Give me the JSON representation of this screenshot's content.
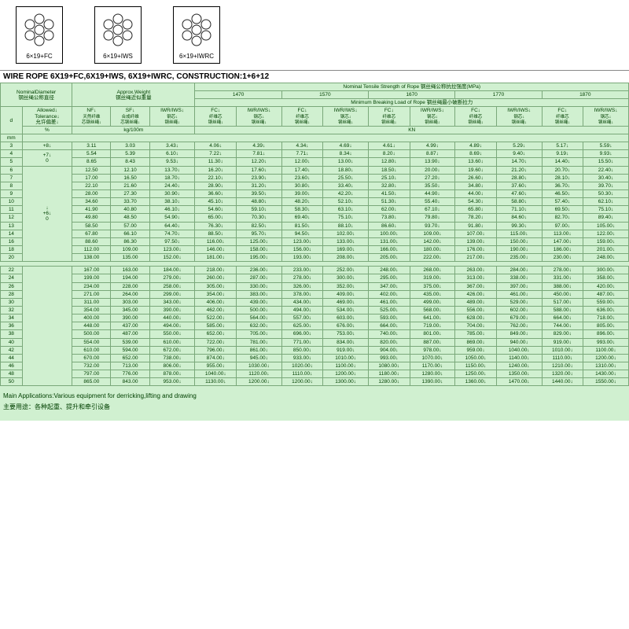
{
  "rope_cards": [
    {
      "label": "6×19+FC"
    },
    {
      "label": "6×19+IWS"
    },
    {
      "label": "6×19+IWRC"
    }
  ],
  "title": "WIRE ROPE  6X19+FC,6X19+IWS, 6X19+IWRC, CONSTRUCTION:1+6+12",
  "hdr": {
    "nominal_diameter": "NominalDiameter",
    "nominal_diameter_cn": "钢丝绳公称直径",
    "approx_weight": "Approx.Weight",
    "approx_weight_cn": "钢丝绳近似重量",
    "tensile": "Nominal Tensile Strength of Rope 钢丝绳公称抗拉强度(MPa)",
    "ts_cols": [
      "1470",
      "1570",
      "1670",
      "1770",
      "1870"
    ],
    "min_break": "Minimum Breaking Load of Rope 钢丝绳最小破断拉力",
    "d": "d",
    "allowed": "Allowed↓",
    "tolerance": "Tolerance↓",
    "tolerance_cn": "允许偏差↓",
    "nf": "NF↓",
    "nf_cn1": "天然纤维",
    "nf_cn2": "芯钢丝绳↓",
    "sf": "SF↓",
    "sf_cn1": "合成纤维",
    "sf_cn2": "芯钢丝绳↓",
    "iwr": "IWR/IWS↓",
    "iwr_cn1": "钢芯↓",
    "iwr_cn2": "钢丝绳↓",
    "fc": "FC↓",
    "fc_cn1": "纤维芯",
    "fc_cn2": "钢丝绳↓",
    "unit_mm": "mm",
    "unit_pct": "%",
    "unit_kg": "kg/100m",
    "unit_kn": "KN"
  },
  "tol_block1": "+8↓",
  "tol_block2a": "+7↓",
  "tol_block2b": "0",
  "tol_block3a": "↓",
  "tol_block3b": "+6↓",
  "tol_block3c": "0",
  "rows_a": [
    {
      "d": "3",
      "nf": "3.11",
      "sf": "3.03",
      "iwr": "3.43↓",
      "v": [
        "4.06",
        "4.39",
        "4.34",
        "4.69",
        "4.61",
        "4.99",
        "4.89",
        "5.29",
        "5.17",
        "5.59"
      ]
    },
    {
      "d": "4",
      "nf": "5.54",
      "sf": "5.39",
      "iwr": "6.10↓",
      "v": [
        "7.22",
        "7.81",
        "7.71",
        "8.34",
        "8.20",
        "8.87",
        "8.69",
        "9.40",
        "9.19",
        "9.93"
      ]
    },
    {
      "d": "5",
      "nf": "8.65",
      "sf": "8.43",
      "iwr": "9.53↓",
      "v": [
        "11.30",
        "12.20",
        "12.00",
        "13.00",
        "12.80",
        "13.90",
        "13.60",
        "14.70",
        "14.40",
        "15.50"
      ]
    }
  ],
  "rows_b": [
    {
      "d": "6",
      "nf": "12.50",
      "sf": "12.10",
      "iwr": "13.70↓",
      "v": [
        "16.20",
        "17.60",
        "17.40",
        "18.80",
        "18.50",
        "20.00",
        "19.60",
        "21.20",
        "20.70",
        "22.40"
      ]
    },
    {
      "d": "7",
      "nf": "17.00",
      "sf": "16.50",
      "iwr": "18.70↓",
      "v": [
        "22.10",
        "23.90",
        "23.60",
        "25.50",
        "25.10",
        "27.20",
        "26.60",
        "28.80",
        "28.10",
        "30.40"
      ]
    },
    {
      "d": "8",
      "nf": "22.10",
      "sf": "21.60",
      "iwr": "24.40↓",
      "v": [
        "28.90",
        "31.20",
        "30.80",
        "33.40",
        "32.80",
        "35.50",
        "34.80",
        "37.60",
        "36.70",
        "39.70"
      ]
    },
    {
      "d": "9",
      "nf": "28.00",
      "sf": "27.30",
      "iwr": "30.90↓",
      "v": [
        "36.60",
        "39.50",
        "39.00",
        "42.20",
        "41.50",
        "44.90",
        "44.00",
        "47.60",
        "46.50",
        "50.30"
      ]
    },
    {
      "d": "10",
      "nf": "34.60",
      "sf": "33.70",
      "iwr": "38.10↓",
      "v": [
        "45.10",
        "48.80",
        "48.20",
        "52.10",
        "51.30",
        "55.40",
        "54.30",
        "58.80",
        "57.40",
        "62.10"
      ]
    },
    {
      "d": "11",
      "nf": "41.90",
      "sf": "40.80",
      "iwr": "46.10↓",
      "v": [
        "54.60",
        "59.10",
        "58.30",
        "63.10",
        "62.00",
        "67.10",
        "65.80",
        "71.10",
        "69.50",
        "75.10"
      ]
    },
    {
      "d": "12",
      "nf": "49.80",
      "sf": "48.50",
      "iwr": "54.90↓",
      "v": [
        "65.00",
        "70.30",
        "69.40",
        "75.10",
        "73.80",
        "79.80",
        "78.20",
        "84.60",
        "82.70",
        "89.40"
      ]
    },
    {
      "d": "13",
      "nf": "58.50",
      "sf": "57.00",
      "iwr": "64.40↓",
      "v": [
        "76.30",
        "82.50",
        "81.50",
        "88.10",
        "86.60",
        "93.70",
        "91.80",
        "99.30",
        "97.00",
        "105.00"
      ]
    },
    {
      "d": "14",
      "nf": "67.80",
      "sf": "66.10",
      "iwr": "74.70↓",
      "v": [
        "88.50",
        "95.70",
        "94.50",
        "102.00",
        "100.00",
        "109.00",
        "107.00",
        "115.00",
        "113.00",
        "122.00"
      ]
    },
    {
      "d": "16",
      "nf": "88.60",
      "sf": "86.30",
      "iwr": "97.50↓",
      "v": [
        "116.00",
        "125.00",
        "123.00",
        "133.00",
        "131.00",
        "142.00",
        "139.00",
        "150.00",
        "147.00",
        "159.00"
      ]
    },
    {
      "d": "18",
      "nf": "112.00",
      "sf": "109.00",
      "iwr": "123.00↓",
      "v": [
        "146.00",
        "158.00",
        "156.00",
        "169.00",
        "166.00",
        "180.00",
        "176.00",
        "190.00",
        "186.00",
        "201.00"
      ]
    },
    {
      "d": "20",
      "nf": "138.00",
      "sf": "135.00",
      "iwr": "152.00↓",
      "v": [
        "181.00",
        "195.00",
        "193.00",
        "208.00",
        "205.00",
        "222.00",
        "217.00",
        "235.00",
        "230.00",
        "248.00"
      ]
    }
  ],
  "rows_c": [
    {
      "d": "22",
      "nf": "167.00",
      "sf": "163.00",
      "iwr": "184.00↓",
      "v": [
        "218.00",
        "236.00",
        "233.00",
        "252.00",
        "248.00",
        "268.00",
        "263.00",
        "284.00",
        "278.00",
        "300.00"
      ]
    },
    {
      "d": "24",
      "nf": "199.00",
      "sf": "194.00",
      "iwr": "279.00↓",
      "v": [
        "260.00",
        "287.00",
        "278.00",
        "300.00",
        "295.00",
        "319.00",
        "313.00",
        "338.00",
        "331.00",
        "358.00"
      ]
    },
    {
      "d": "26",
      "nf": "234.00",
      "sf": "228.00",
      "iwr": "258.00↓",
      "v": [
        "305.00",
        "330.00",
        "326.00",
        "352.00",
        "347.00",
        "375.00",
        "367.00",
        "397.00",
        "388.00",
        "420.00"
      ]
    },
    {
      "d": "28",
      "nf": "271.00",
      "sf": "264.00",
      "iwr": "299.00↓",
      "v": [
        "354.00",
        "383.00",
        "378.00",
        "409.00",
        "402.00",
        "435.00",
        "426.00",
        "461.00",
        "450.00",
        "487.00"
      ]
    },
    {
      "d": "30",
      "nf": "311.00",
      "sf": "303.00",
      "iwr": "343.00↓",
      "v": [
        "406.00",
        "439.00",
        "434.00",
        "469.00",
        "461.00",
        "499.00",
        "489.00",
        "529.00",
        "517.00",
        "559.00"
      ]
    },
    {
      "d": "32",
      "nf": "354.00",
      "sf": "345.00",
      "iwr": "390.00↓",
      "v": [
        "462.00",
        "500.00",
        "494.00",
        "534.00",
        "525.00",
        "568.00",
        "556.00",
        "602.00",
        "588.00",
        "636.00"
      ]
    },
    {
      "d": "34",
      "nf": "400.00",
      "sf": "390.00",
      "iwr": "440.00↓",
      "v": [
        "522.00",
        "564.00",
        "557.00",
        "603.00",
        "593.00",
        "641.00",
        "628.00",
        "679.00",
        "664.00",
        "718.00"
      ]
    },
    {
      "d": "36",
      "nf": "448.00",
      "sf": "437.00",
      "iwr": "494.00↓",
      "v": [
        "585.00",
        "632.00",
        "625.00",
        "676.00",
        "664.00",
        "719.00",
        "704.00",
        "762.00",
        "744.00",
        "805.00"
      ]
    },
    {
      "d": "38",
      "nf": "500.00",
      "sf": "487.00",
      "iwr": "550.00↓",
      "v": [
        "652.00",
        "705.00",
        "696.00",
        "753.00",
        "740.00",
        "801.00",
        "785.00",
        "849.00",
        "829.00",
        "896.00"
      ]
    },
    {
      "d": "40",
      "nf": "554.00",
      "sf": "539.00",
      "iwr": "610.00↓",
      "v": [
        "722.00",
        "781.00",
        "771.00",
        "834.00",
        "820.00",
        "887.00",
        "869.00",
        "940.00",
        "919.00",
        "993.00"
      ]
    },
    {
      "d": "42",
      "nf": "610.00",
      "sf": "594.00",
      "iwr": "672.00↓",
      "v": [
        "796.00",
        "861.00",
        "850.00",
        "919.00",
        "904.00",
        "978.00",
        "959.00",
        "1040.00",
        "1010.00",
        "1100.00"
      ]
    },
    {
      "d": "44",
      "nf": "670.00",
      "sf": "652.00",
      "iwr": "738.00↓",
      "v": [
        "874.00",
        "945.00",
        "933.00",
        "1010.00",
        "993.00",
        "1070.00",
        "1050.00",
        "1140.00",
        "1110.00",
        "1200.00"
      ]
    },
    {
      "d": "46",
      "nf": "732.00",
      "sf": "713.00",
      "iwr": "806.00↓",
      "v": [
        "955.00",
        "1030.00",
        "1020.00",
        "1100.00",
        "1080.00",
        "1170.00",
        "1150.00",
        "1240.00",
        "1210.00",
        "1310.00"
      ]
    },
    {
      "d": "48",
      "nf": "797.00",
      "sf": "776.00",
      "iwr": "878.00↓",
      "v": [
        "1040.00",
        "1120.00",
        "1110.00",
        "1200.00",
        "1180.00",
        "1280.00",
        "1250.00",
        "1350.00",
        "1320.00",
        "1430.00"
      ]
    },
    {
      "d": "50",
      "nf": "865.00",
      "sf": "843.00",
      "iwr": "953.00↓",
      "v": [
        "1130.00",
        "1200.00",
        "1200.00",
        "1300.00",
        "1280.00",
        "1390.00",
        "1360.00",
        "1470.00",
        "1440.00",
        "1550.00"
      ]
    }
  ],
  "footer1": "Main Applications:Various equipment for  derricking,lifting and drawing",
  "footer2": "主要用途：各种起重、提升和牵引设备"
}
